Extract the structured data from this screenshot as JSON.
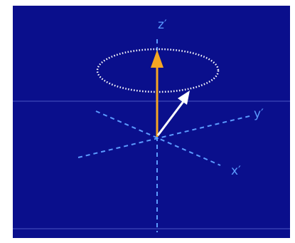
{
  "colors": {
    "background": "#0a0f8c",
    "axis": "#5b9bff",
    "magnetization_vector": "#f5a623",
    "precessing_vector": "#ffffff",
    "precession_orbit": "#ffffff",
    "frame_line": "#8ea2ff"
  },
  "axes": {
    "z_label": "z′",
    "y_label": "y′",
    "x_label": "x′"
  }
}
